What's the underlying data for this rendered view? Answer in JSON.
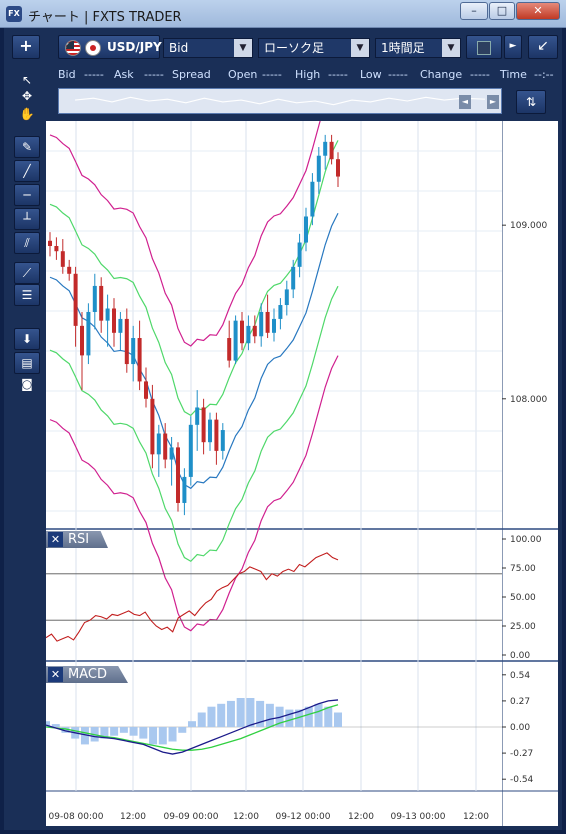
{
  "window": {
    "title": "チャート | FXTS TRADER",
    "icon_label": "FX",
    "minimize": "–",
    "maximize": "□",
    "close": "✕"
  },
  "toolbar": {
    "add_label": "+",
    "symbol": "USD/JPY",
    "price_type": "Bid",
    "chart_type": "ローソク足",
    "timeframe": "1時間足",
    "dropdown_arrow": "▼",
    "more_arrow": "►",
    "expand_label": "↙"
  },
  "quote_bar": {
    "bid_label": "Bid",
    "bid_value": "-----",
    "ask_label": "Ask",
    "ask_value": "-----",
    "spread_label": "Spread",
    "open_label": "Open",
    "open_value": "-----",
    "high_label": "High",
    "high_value": "-----",
    "low_label": "Low",
    "low_value": "-----",
    "change_label": "Change",
    "change_value": "-----",
    "time_label": "Time",
    "time_value": "--:--"
  },
  "mini_scroll": {
    "left": "◄",
    "right": "►"
  },
  "left_tools": [
    {
      "name": "cursor-tool",
      "glyph": "↖"
    },
    {
      "name": "crosshair-tool",
      "glyph": "✥"
    },
    {
      "name": "hand-tool",
      "glyph": "✋"
    },
    {
      "name": "pencil-tool",
      "glyph": "✎"
    },
    {
      "name": "trendline-tool",
      "glyph": "╱"
    },
    {
      "name": "horizontal-line-tool",
      "glyph": "─"
    },
    {
      "name": "vertical-line-tool",
      "glyph": "┴"
    },
    {
      "name": "channel-tool",
      "glyph": "⫽"
    },
    {
      "name": "fibonacci-fan-tool",
      "glyph": "⟋"
    },
    {
      "name": "fibonacci-retracement-tool",
      "glyph": "☰"
    },
    {
      "name": "download-tool",
      "glyph": "⬇"
    },
    {
      "name": "list-tool",
      "glyph": "▤"
    },
    {
      "name": "camera-tool",
      "glyph": "◙"
    }
  ],
  "panels": {
    "rsi_label": "RSI",
    "macd_label": "MACD",
    "close_glyph": "✕"
  },
  "colors": {
    "candle_up": "#1e8fc8",
    "candle_down": "#c22a2a",
    "bb_outer": "#d0208f",
    "bb_inner": "#4fd86a",
    "bb_mid": "#2878c0",
    "rsi": "#c21e1e",
    "macd": "#1b1a8a",
    "signal": "#30d040",
    "histogram": "#a9c8ef"
  },
  "chart_data": [
    {
      "type": "candlestick",
      "title": "USD/JPY",
      "y_ticks": [
        "109.000",
        "108.000"
      ],
      "x_ticks": [
        "09-08 00:00",
        "12:00",
        "09-09 00:00",
        "12:00",
        "09-12 00:00",
        "12:00",
        "09-13 00:00",
        "12:00"
      ],
      "ylim": [
        107.25,
        109.6
      ],
      "candles": [
        {
          "o": 108.91,
          "h": 108.96,
          "l": 108.82,
          "c": 108.88
        },
        {
          "o": 108.88,
          "h": 108.93,
          "l": 108.8,
          "c": 108.85
        },
        {
          "o": 108.85,
          "h": 108.92,
          "l": 108.72,
          "c": 108.76
        },
        {
          "o": 108.76,
          "h": 108.8,
          "l": 108.68,
          "c": 108.72
        },
        {
          "o": 108.72,
          "h": 108.76,
          "l": 108.3,
          "c": 108.42
        },
        {
          "o": 108.42,
          "h": 108.5,
          "l": 108.05,
          "c": 108.25
        },
        {
          "o": 108.25,
          "h": 108.55,
          "l": 108.2,
          "c": 108.5
        },
        {
          "o": 108.5,
          "h": 108.72,
          "l": 108.4,
          "c": 108.65
        },
        {
          "o": 108.65,
          "h": 108.7,
          "l": 108.38,
          "c": 108.45
        },
        {
          "o": 108.45,
          "h": 108.6,
          "l": 108.3,
          "c": 108.52
        },
        {
          "o": 108.52,
          "h": 108.58,
          "l": 108.3,
          "c": 108.38
        },
        {
          "o": 108.38,
          "h": 108.5,
          "l": 108.28,
          "c": 108.46
        },
        {
          "o": 108.46,
          "h": 108.52,
          "l": 108.15,
          "c": 108.2
        },
        {
          "o": 108.2,
          "h": 108.42,
          "l": 108.1,
          "c": 108.35
        },
        {
          "o": 108.35,
          "h": 108.45,
          "l": 108.05,
          "c": 108.1
        },
        {
          "o": 108.1,
          "h": 108.18,
          "l": 107.95,
          "c": 108.0
        },
        {
          "o": 108.0,
          "h": 108.08,
          "l": 107.6,
          "c": 107.68
        },
        {
          "o": 107.68,
          "h": 107.85,
          "l": 107.55,
          "c": 107.8
        },
        {
          "o": 107.8,
          "h": 107.86,
          "l": 107.6,
          "c": 107.65
        },
        {
          "o": 107.65,
          "h": 107.78,
          "l": 107.5,
          "c": 107.72
        },
        {
          "o": 107.72,
          "h": 107.75,
          "l": 107.35,
          "c": 107.4
        },
        {
          "o": 107.4,
          "h": 107.6,
          "l": 107.33,
          "c": 107.55
        },
        {
          "o": 107.55,
          "h": 107.9,
          "l": 107.5,
          "c": 107.85
        },
        {
          "o": 107.85,
          "h": 108.05,
          "l": 107.7,
          "c": 107.95
        },
        {
          "o": 107.95,
          "h": 108.0,
          "l": 107.68,
          "c": 107.75
        },
        {
          "o": 107.75,
          "h": 107.92,
          "l": 107.7,
          "c": 107.88
        },
        {
          "o": 107.88,
          "h": 107.92,
          "l": 107.62,
          "c": 107.7
        },
        {
          "o": 107.7,
          "h": 107.86,
          "l": 107.65,
          "c": 107.82
        },
        {
          "o": 108.35,
          "h": 108.45,
          "l": 108.18,
          "c": 108.22
        },
        {
          "o": 108.22,
          "h": 108.48,
          "l": 108.2,
          "c": 108.45
        },
        {
          "o": 108.45,
          "h": 108.5,
          "l": 108.28,
          "c": 108.32
        },
        {
          "o": 108.32,
          "h": 108.48,
          "l": 108.28,
          "c": 108.42
        },
        {
          "o": 108.42,
          "h": 108.48,
          "l": 108.32,
          "c": 108.36
        },
        {
          "o": 108.36,
          "h": 108.55,
          "l": 108.3,
          "c": 108.5
        },
        {
          "o": 108.5,
          "h": 108.6,
          "l": 108.35,
          "c": 108.38
        },
        {
          "o": 108.38,
          "h": 108.52,
          "l": 108.33,
          "c": 108.46
        },
        {
          "o": 108.46,
          "h": 108.58,
          "l": 108.4,
          "c": 108.54
        },
        {
          "o": 108.54,
          "h": 108.68,
          "l": 108.48,
          "c": 108.63
        },
        {
          "o": 108.63,
          "h": 108.8,
          "l": 108.58,
          "c": 108.76
        },
        {
          "o": 108.76,
          "h": 108.95,
          "l": 108.7,
          "c": 108.9
        },
        {
          "o": 108.9,
          "h": 109.1,
          "l": 108.85,
          "c": 109.05
        },
        {
          "o": 109.05,
          "h": 109.3,
          "l": 109.0,
          "c": 109.25
        },
        {
          "o": 109.25,
          "h": 109.45,
          "l": 109.18,
          "c": 109.4
        },
        {
          "o": 109.4,
          "h": 109.52,
          "l": 109.32,
          "c": 109.48
        },
        {
          "o": 109.48,
          "h": 109.52,
          "l": 109.35,
          "c": 109.38
        },
        {
          "o": 109.38,
          "h": 109.42,
          "l": 109.22,
          "c": 109.28
        }
      ]
    },
    {
      "type": "line",
      "title": "RSI",
      "y_ticks": [
        "100.00",
        "75.00",
        "50.00",
        "25.00",
        "0.00"
      ],
      "ylim": [
        0,
        100
      ],
      "levels": [
        70,
        30
      ],
      "values": [
        15,
        18,
        12,
        14,
        16,
        13,
        20,
        28,
        30,
        34,
        33,
        31,
        35,
        34,
        36,
        38,
        35,
        34,
        37,
        30,
        25,
        22,
        24,
        20,
        32,
        35,
        38,
        34,
        40,
        45,
        48,
        55,
        58,
        60,
        65,
        70,
        72,
        76,
        74,
        72,
        65,
        70,
        68,
        72,
        74,
        72,
        78,
        76,
        80,
        84,
        86,
        88,
        84,
        82
      ]
    },
    {
      "type": "line",
      "title": "MACD",
      "y_ticks": [
        "0.54",
        "0.27",
        "0.00",
        "-0.27",
        "-0.54"
      ],
      "ylim": [
        -0.6,
        0.6
      ],
      "macd": [
        0.02,
        -0.01,
        -0.04,
        -0.06,
        -0.08,
        -0.1,
        -0.11,
        -0.12,
        -0.14,
        -0.16,
        -0.18,
        -0.22,
        -0.26,
        -0.28,
        -0.26,
        -0.22,
        -0.18,
        -0.14,
        -0.1,
        -0.06,
        -0.02,
        0.02,
        0.05,
        0.08,
        0.1,
        0.13,
        0.16,
        0.2,
        0.24,
        0.27,
        0.28
      ],
      "signal": [
        0.0,
        -0.01,
        -0.02,
        -0.04,
        -0.06,
        -0.08,
        -0.1,
        -0.11,
        -0.13,
        -0.15,
        -0.17,
        -0.19,
        -0.21,
        -0.23,
        -0.24,
        -0.24,
        -0.23,
        -0.21,
        -0.18,
        -0.15,
        -0.12,
        -0.08,
        -0.04,
        0.0,
        0.04,
        0.07,
        0.1,
        0.13,
        0.16,
        0.2,
        0.23
      ],
      "histogram": [
        0.02,
        0.01,
        -0.02,
        -0.04,
        -0.06,
        -0.05,
        -0.04,
        -0.03,
        -0.02,
        -0.03,
        -0.04,
        -0.06,
        -0.06,
        -0.05,
        -0.02,
        0.02,
        0.05,
        0.07,
        0.08,
        0.09,
        0.1,
        0.1,
        0.09,
        0.08,
        0.07,
        0.06,
        0.06,
        0.07,
        0.08,
        0.07,
        0.05
      ]
    }
  ]
}
